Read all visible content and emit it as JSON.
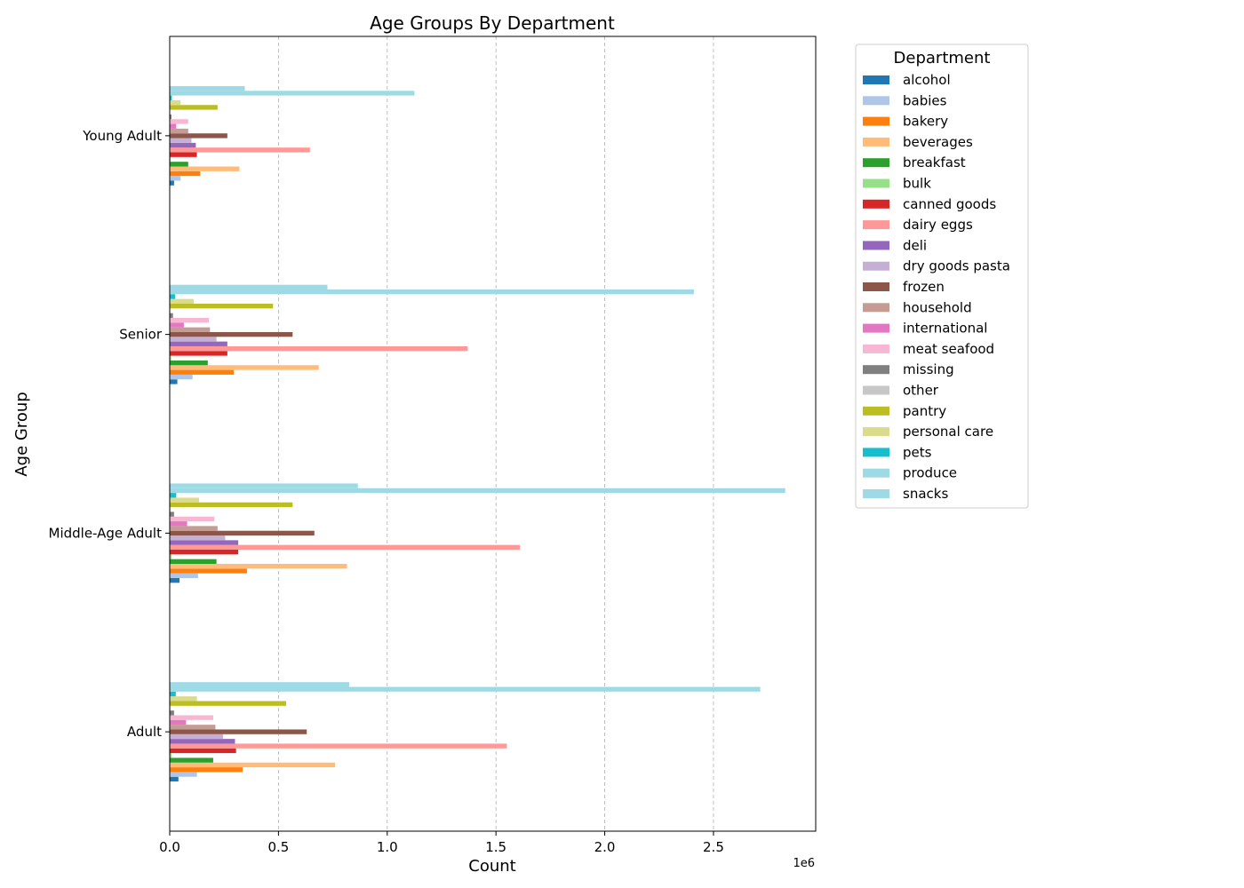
{
  "chart_data": {
    "type": "bar",
    "orientation": "horizontal",
    "title": "Age Groups By Department",
    "xlabel": "Count",
    "ylabel": "Age Group",
    "x_scale_label": "1e6",
    "xlim": [
      0,
      2970000
    ],
    "x_ticks": [
      0,
      500000,
      1000000,
      1500000,
      2000000,
      2500000
    ],
    "x_tick_labels": [
      "0.0",
      "0.5",
      "1.0",
      "1.5",
      "2.0",
      "2.5"
    ],
    "grid": "x-dashed",
    "legend_title": "Department",
    "legend_position": "outside-right-top",
    "categories": [
      "Adult",
      "Middle-Age Adult",
      "Senior",
      "Young Adult"
    ],
    "series": [
      {
        "name": "alcohol",
        "color": "#1f77b4",
        "values": [
          40000,
          45000,
          35000,
          20000
        ]
      },
      {
        "name": "babies",
        "color": "#aec7e8",
        "values": [
          125000,
          130000,
          105000,
          50000
        ]
      },
      {
        "name": "bakery",
        "color": "#ff7f0e",
        "values": [
          335000,
          355000,
          295000,
          140000
        ]
      },
      {
        "name": "beverages",
        "color": "#ffbb78",
        "values": [
          760000,
          815000,
          685000,
          320000
        ]
      },
      {
        "name": "breakfast",
        "color": "#2ca02c",
        "values": [
          200000,
          215000,
          175000,
          85000
        ]
      },
      {
        "name": "bulk",
        "color": "#98df8a",
        "values": [
          9000,
          9000,
          7000,
          4000
        ]
      },
      {
        "name": "canned goods",
        "color": "#d62728",
        "values": [
          305000,
          315000,
          265000,
          125000
        ]
      },
      {
        "name": "dairy eggs",
        "color": "#ff9896",
        "values": [
          1550000,
          1610000,
          1370000,
          645000
        ]
      },
      {
        "name": "deli",
        "color": "#9467bd",
        "values": [
          300000,
          315000,
          265000,
          120000
        ]
      },
      {
        "name": "dry goods pasta",
        "color": "#c5b0d5",
        "values": [
          245000,
          255000,
          215000,
          100000
        ]
      },
      {
        "name": "frozen",
        "color": "#8c564b",
        "values": [
          630000,
          665000,
          565000,
          265000
        ]
      },
      {
        "name": "household",
        "color": "#c49c94",
        "values": [
          210000,
          220000,
          185000,
          85000
        ]
      },
      {
        "name": "international",
        "color": "#e377c2",
        "values": [
          75000,
          80000,
          65000,
          30000
        ]
      },
      {
        "name": "meat seafood",
        "color": "#f7b6d2",
        "values": [
          200000,
          205000,
          180000,
          85000
        ]
      },
      {
        "name": "missing",
        "color": "#7f7f7f",
        "values": [
          20000,
          20000,
          15000,
          8000
        ]
      },
      {
        "name": "other",
        "color": "#c7c7c7",
        "values": [
          3000,
          3000,
          2500,
          1500
        ]
      },
      {
        "name": "pantry",
        "color": "#bcbd22",
        "values": [
          535000,
          565000,
          475000,
          220000
        ]
      },
      {
        "name": "personal care",
        "color": "#dbdb8d",
        "values": [
          125000,
          135000,
          110000,
          50000
        ]
      },
      {
        "name": "pets",
        "color": "#17becf",
        "values": [
          28000,
          30000,
          25000,
          10000
        ]
      },
      {
        "name": "produce",
        "color": "#9edae5",
        "values": [
          2715000,
          2830000,
          2410000,
          1125000
        ]
      },
      {
        "name": "snacks",
        "color": "#9edae5",
        "values": [
          825000,
          865000,
          725000,
          345000
        ]
      }
    ]
  }
}
